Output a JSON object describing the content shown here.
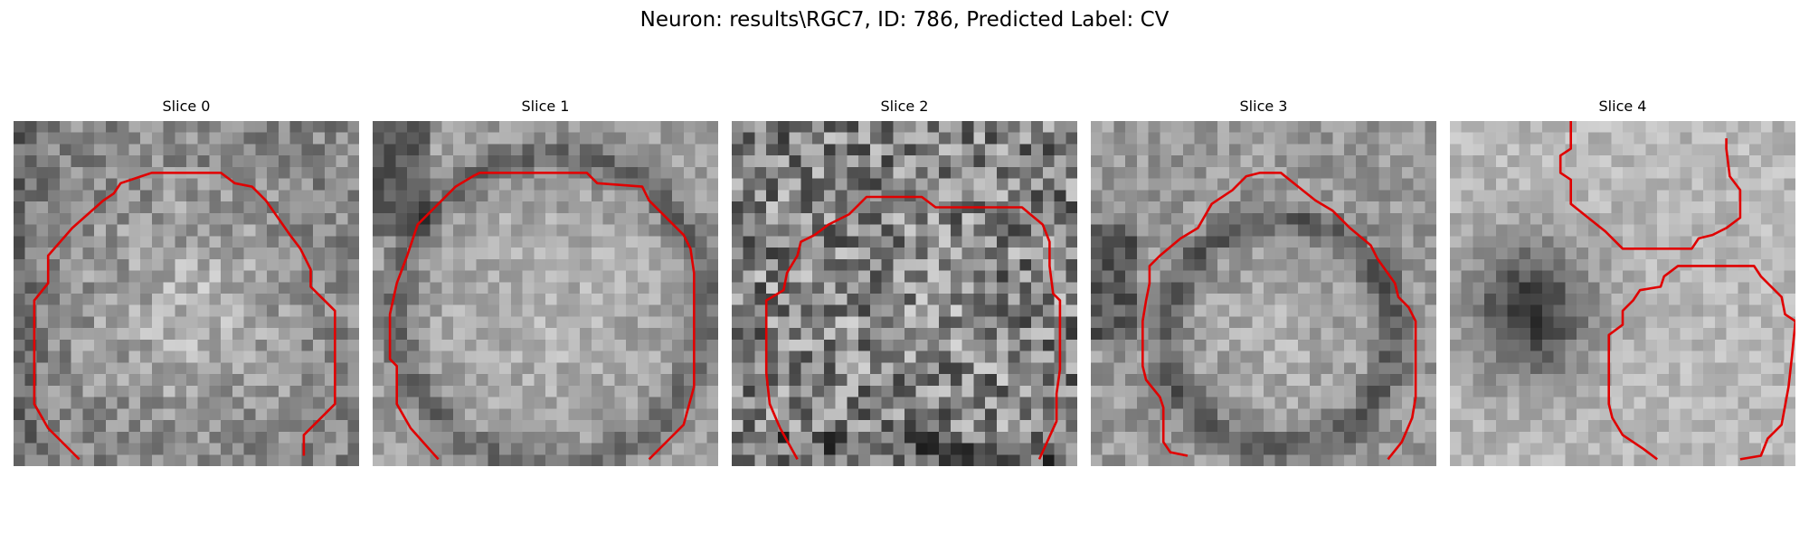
{
  "figure": {
    "title": "Neuron: results\\RGC7, ID: 786, Predicted Label: CV"
  },
  "contour_color": "#e00000",
  "panels": [
    {
      "title": "Slice 0"
    },
    {
      "title": "Slice 1"
    },
    {
      "title": "Slice 2"
    },
    {
      "title": "Slice 3"
    },
    {
      "title": "Slice 4"
    }
  ]
}
